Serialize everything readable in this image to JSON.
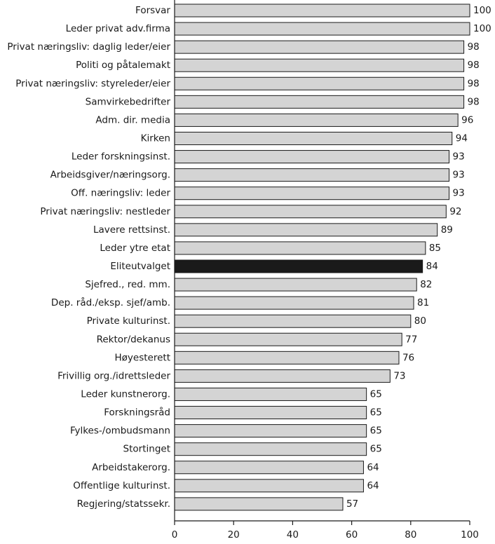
{
  "chart_data": {
    "type": "bar",
    "orientation": "horizontal",
    "categories": [
      "Forsvar",
      "Leder privat adv.firma",
      "Privat næringsliv: daglig leder/eier",
      "Politi og påtalemakt",
      "Privat næringsliv: styreleder/eier",
      "Samvirkebedrifter",
      "Adm. dir. media",
      "Kirken",
      "Leder forskningsinst.",
      "Arbeidsgiver/næringsorg.",
      "Off. næringsliv: leder",
      "Privat næringsliv: nestleder",
      "Lavere rettsinst.",
      "Leder ytre etat",
      "Eliteutvalget",
      "Sjefred., red. mm.",
      "Dep. råd./eksp. sjef/amb.",
      "Private kulturinst.",
      "Rektor/dekanus",
      "Høyesterett",
      "Frivillig org./idrettsleder",
      "Leder kunstnerorg.",
      "Forskningsråd",
      "Fylkes-/ombudsmann",
      "Stortinget",
      "Arbeidstakerorg.",
      "Offentlige kulturinst.",
      "Regjering/statssekr."
    ],
    "values": [
      100,
      100,
      98,
      98,
      98,
      98,
      96,
      94,
      93,
      93,
      93,
      92,
      89,
      85,
      84,
      82,
      81,
      80,
      77,
      76,
      73,
      65,
      65,
      65,
      65,
      64,
      64,
      57
    ],
    "value_labels": [
      "100",
      "100",
      "98",
      "98",
      "98",
      "98",
      "96",
      "94",
      "93",
      "93",
      "93",
      "92",
      "89",
      "85",
      "84",
      "82",
      "81",
      "80",
      "77",
      "76",
      "73",
      "65",
      "65",
      "65",
      "65",
      "64",
      "64",
      "57"
    ],
    "highlight_category": "Eliteutvalget",
    "xlim": [
      0,
      100
    ],
    "xticks": [
      0,
      20,
      40,
      60,
      80,
      100
    ],
    "xtick_labels": [
      "0",
      "20",
      "40",
      "60",
      "80",
      "100"
    ],
    "grid": false,
    "colors": {
      "bar_fill": "#d4d4d4",
      "highlight_fill": "#1a1a1a",
      "bar_stroke": "#1a1a1a",
      "axis": "#1a1a1a"
    }
  }
}
